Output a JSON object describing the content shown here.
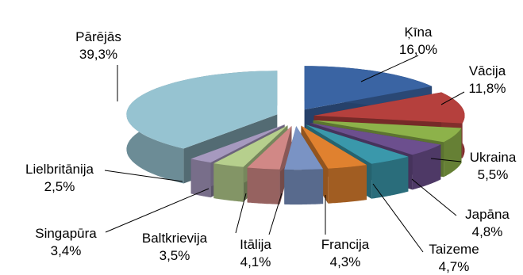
{
  "chart_data": {
    "type": "pie",
    "title": "",
    "slices": [
      {
        "name": "Ķīna",
        "value": 16.0,
        "label": "16,0%",
        "color": "#3a64a3"
      },
      {
        "name": "Vācija",
        "value": 11.8,
        "label": "11,8%",
        "color": "#b5403d"
      },
      {
        "name": "Ukraina",
        "value": 5.5,
        "label": "5,5%",
        "color": "#8db24a"
      },
      {
        "name": "Japāna",
        "value": 4.8,
        "label": "4,8%",
        "color": "#6c4f8e"
      },
      {
        "name": "Taizeme",
        "value": 4.7,
        "label": "4,7%",
        "color": "#3a98ab"
      },
      {
        "name": "Francija",
        "value": 4.3,
        "label": "4,3%",
        "color": "#e0812f"
      },
      {
        "name": "Itālija",
        "value": 4.1,
        "label": "4,1%",
        "color": "#7a93c4"
      },
      {
        "name": "Baltkrievija",
        "value": 3.5,
        "label": "3,5%",
        "color": "#d18886"
      },
      {
        "name": "Singapūra",
        "value": 3.4,
        "label": "3,4%",
        "color": "#b6cf8d"
      },
      {
        "name": "Lielbritānija",
        "value": 2.5,
        "label": "2,5%",
        "color": "#a699bf"
      },
      {
        "name": "Pārējās",
        "value": 39.3,
        "label": "39,3%",
        "color": "#96c3d1"
      }
    ]
  }
}
